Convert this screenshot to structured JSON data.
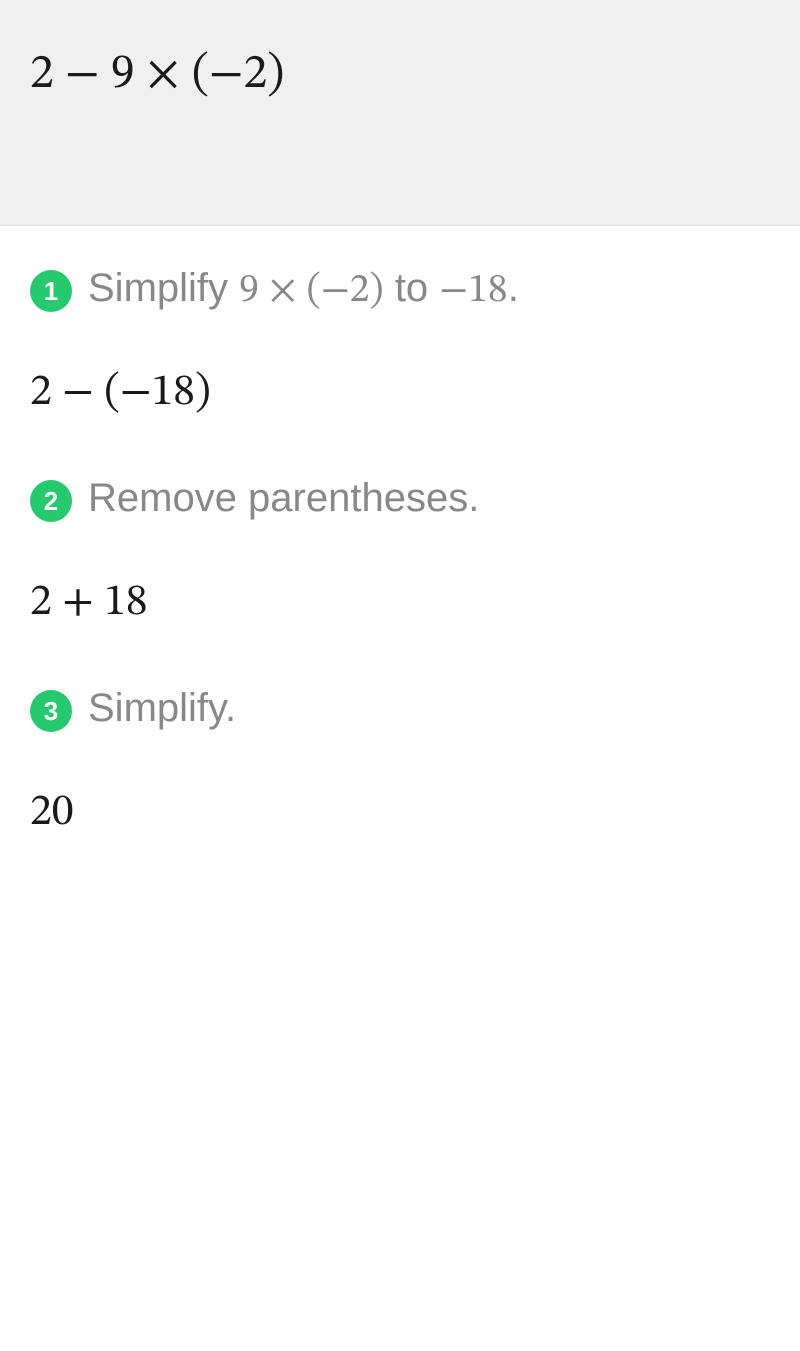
{
  "colors": {
    "header_bg": "#f0f0f0",
    "body_bg": "#ffffff",
    "badge_bg": "#26c96e",
    "badge_text": "#ffffff",
    "expression_text": "#1a1a1a",
    "step_text": "#888888",
    "border": "#e0e0e0"
  },
  "typography": {
    "math_font": "Cambria Math, STIX Two Math, Times New Roman, serif",
    "ui_font": "Segoe UI, sans-serif",
    "main_expr_size": 48,
    "step_text_size": 40,
    "result_size": 44,
    "badge_size": 26
  },
  "problem": {
    "expression": "2 − 9 × (−2)"
  },
  "steps": [
    {
      "number": "1",
      "instruction_pre": "Simplify ",
      "instruction_math1": "9 × (−2)",
      "instruction_mid": " to ",
      "instruction_math2": "−18",
      "instruction_post": ".",
      "result": "2 − (−18)"
    },
    {
      "number": "2",
      "instruction_pre": "Remove parentheses.",
      "instruction_math1": "",
      "instruction_mid": "",
      "instruction_math2": "",
      "instruction_post": "",
      "result": "2 + 18"
    },
    {
      "number": "3",
      "instruction_pre": "Simplify.",
      "instruction_math1": "",
      "instruction_mid": "",
      "instruction_math2": "",
      "instruction_post": "",
      "result": "20"
    }
  ]
}
